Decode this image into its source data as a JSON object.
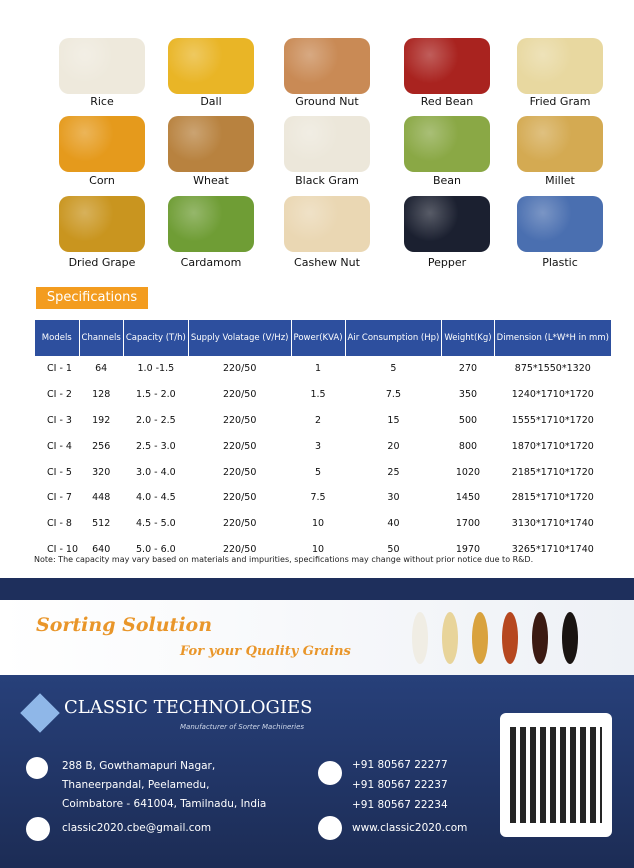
{
  "grains": [
    "Rice",
    "Dall",
    "Ground Nut",
    "Red Bean",
    "Fried Gram",
    "Corn",
    "Wheat",
    "Black Gram",
    "Bean",
    "Millet",
    "Dried Grape",
    "Cardamom",
    "Cashew Nut",
    "Pepper",
    "Plastic"
  ],
  "specifications": {
    "heading": "Specifications",
    "headers": [
      "Models",
      "Channels",
      "Capacity (T/h)",
      "Supply Volatage (V/Hz)",
      "Power(KVA)",
      "Air Consumption (Hp)",
      "Weight(Kg)",
      "Dimension (L*W*H in mm)"
    ],
    "rows": [
      [
        "CI - 1",
        "64",
        "1.0 -1.5",
        "220/50",
        "1",
        "5",
        "270",
        "875*1550*1320"
      ],
      [
        "CI - 2",
        "128",
        "1.5 - 2.0",
        "220/50",
        "1.5",
        "7.5",
        "350",
        "1240*1710*1720"
      ],
      [
        "CI - 3",
        "192",
        "2.0 - 2.5",
        "220/50",
        "2",
        "15",
        "500",
        "1555*1710*1720"
      ],
      [
        "CI - 4",
        "256",
        "2.5 - 3.0",
        "220/50",
        "3",
        "20",
        "800",
        "1870*1710*1720"
      ],
      [
        "CI - 5",
        "320",
        "3.0 - 4.0",
        "220/50",
        "5",
        "25",
        "1020",
        "2185*1710*1720"
      ],
      [
        "CI - 7",
        "448",
        "4.0 - 4.5",
        "220/50",
        "7.5",
        "30",
        "1450",
        "2815*1710*1720"
      ],
      [
        "CI - 8",
        "512",
        "4.5 - 5.0",
        "220/50",
        "10",
        "40",
        "1700",
        "3130*1710*1740"
      ],
      [
        "CI - 10",
        "640",
        "5.0 - 6.0",
        "220/50",
        "10",
        "50",
        "1970",
        "3265*1710*1740"
      ]
    ],
    "note": "Note: The capacity may vary based on materials and  impurities, specifications may change without prior notice due to R&D."
  },
  "banner": {
    "title": "Sorting Solution",
    "subtitle": "For your Quality Grains"
  },
  "footer": {
    "company": "CLASSIC TECHNOLOGIES",
    "tagline": "Manufacturer of Sorter Machineries",
    "address": [
      "288 B, Gowthamapuri Nagar,",
      "Thaneerpandal, Peelamedu,",
      "Coimbatore - 641004, Tamilnadu, India"
    ],
    "phones": [
      "+91 80567 22277",
      "+91 80567 22237",
      "+91 80567 22234"
    ],
    "email": "classic2020.cbe@gmail.com",
    "website": "www.classic2020.com"
  }
}
